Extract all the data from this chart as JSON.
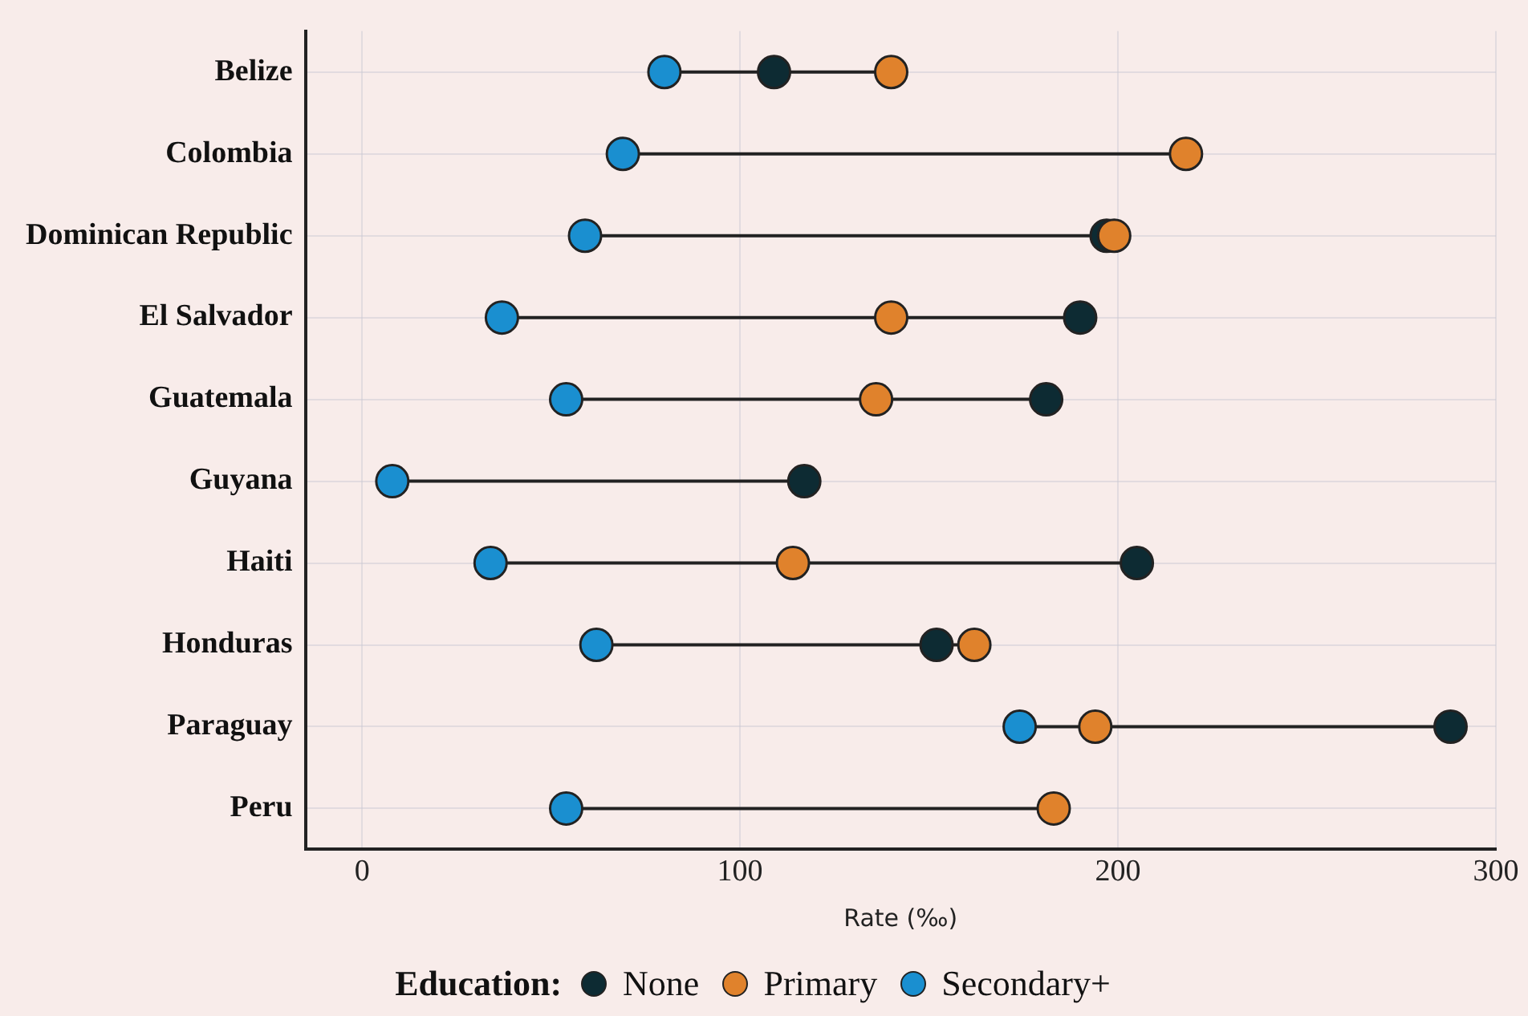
{
  "chart_data": {
    "type": "scatter",
    "orientation": "horizontal",
    "xlabel": "Rate (‰)",
    "legend_title": "Education:",
    "legend": "bottom",
    "grid": true,
    "marker": "circle",
    "categories": [
      "Belize",
      "Colombia",
      "Dominican Republic",
      "El Salvador",
      "Guatemala",
      "Guyana",
      "Haiti",
      "Honduras",
      "Paraguay",
      "Peru"
    ],
    "xlim": [
      -15,
      300
    ],
    "xticks": [
      0,
      100,
      200,
      300
    ],
    "series": [
      {
        "name": "None",
        "color": "#0d2b33",
        "values": [
          109,
          null,
          197,
          190,
          181,
          117,
          205,
          152,
          288,
          null
        ]
      },
      {
        "name": "Primary",
        "color": "#e0822c",
        "values": [
          140,
          218,
          199,
          140,
          136,
          null,
          114,
          162,
          194,
          183
        ]
      },
      {
        "name": "Secondary+",
        "color": "#1a8fd0",
        "values": [
          80,
          69,
          59,
          37,
          54,
          8,
          34,
          62,
          174,
          54
        ]
      }
    ]
  }
}
